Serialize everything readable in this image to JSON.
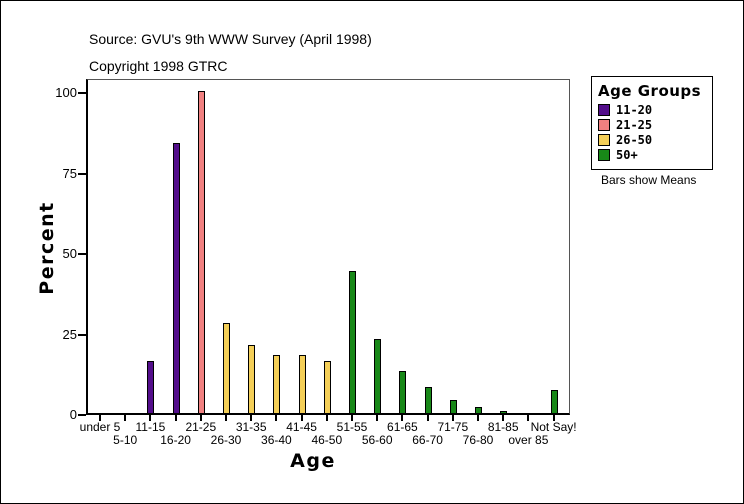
{
  "header": {
    "source": "Source: GVU's 9th WWW Survey (April 1998)",
    "copyright": "Copyright 1998 GTRC"
  },
  "chart_data": {
    "type": "bar",
    "title": "",
    "xlabel": "Age",
    "ylabel": "Percent",
    "ylim": [
      0,
      100
    ],
    "yticks": [
      0,
      25,
      50,
      75,
      100
    ],
    "grid": false,
    "legend_position": "right",
    "categories": [
      "under 5",
      "5-10",
      "11-15",
      "16-20",
      "21-25",
      "26-30",
      "31-35",
      "36-40",
      "41-45",
      "46-50",
      "51-55",
      "56-60",
      "61-65",
      "66-70",
      "71-75",
      "76-80",
      "81-85",
      "over 85",
      "Not Say!"
    ],
    "values": [
      0,
      0,
      16,
      84,
      100,
      28,
      21,
      18,
      18,
      16,
      44,
      23,
      13,
      8,
      4,
      2,
      0.5,
      0,
      7
    ],
    "bar_group": [
      "none",
      "none",
      "11-20",
      "11-20",
      "21-25",
      "26-50",
      "26-50",
      "26-50",
      "26-50",
      "26-50",
      "50+",
      "50+",
      "50+",
      "50+",
      "50+",
      "50+",
      "50+",
      "50+",
      "50+"
    ],
    "group_colors": {
      "11-20": "#530E8B",
      "21-25": "#F08080",
      "26-50": "#F4CF58",
      "50+": "#188818",
      "none": "#FFFFFF"
    },
    "legend": {
      "title": "Age Groups",
      "entries": [
        {
          "label": "11-20",
          "color": "#530E8B"
        },
        {
          "label": "21-25",
          "color": "#F08080"
        },
        {
          "label": "26-50",
          "color": "#F4CF58"
        },
        {
          "label": "50+",
          "color": "#188818"
        }
      ]
    },
    "annotation": "Bars show Means"
  }
}
